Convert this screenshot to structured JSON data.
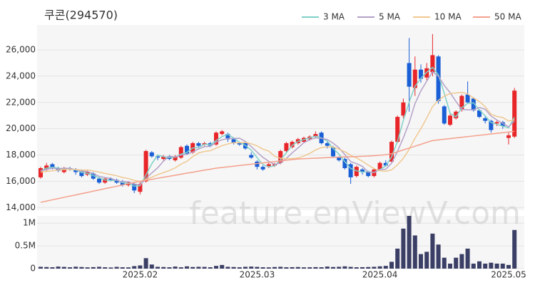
{
  "watermark": "feature.enViewV.com",
  "chart_data": [
    {
      "type": "candlestick",
      "title": "쿠콘(294570)",
      "up_color": "#e8262a",
      "down_color": "#1a5fd6",
      "open": [
        16300,
        16900,
        17300,
        17000,
        16700,
        17000,
        16900,
        16800,
        16500,
        16600,
        16200,
        15900,
        16200,
        16100,
        16000,
        15700,
        15800,
        15200,
        16000,
        18200,
        17900,
        17700,
        17900,
        17600,
        17800,
        18700,
        18200,
        18900,
        18800,
        18900,
        18800,
        19600,
        19600,
        19200,
        18900,
        18900,
        18000,
        17500,
        17100,
        17100,
        17200,
        17400,
        18300,
        18600,
        18900,
        19000,
        19200,
        19400,
        19700,
        18900,
        18600,
        17800,
        17700,
        17300,
        16400,
        16900,
        16700,
        16400,
        16900,
        17400,
        17500,
        19000,
        21000,
        25000,
        23100,
        24500,
        23900,
        24300,
        25500,
        21700,
        20300,
        20800,
        21500,
        22600,
        22300,
        21400,
        20800,
        20600,
        20400,
        20500,
        19300,
        19400
      ],
      "high": [
        17100,
        17400,
        17400,
        17100,
        17100,
        17100,
        17000,
        16900,
        16800,
        16700,
        16300,
        16300,
        16300,
        16200,
        16100,
        16000,
        15900,
        16000,
        18400,
        18300,
        18000,
        18000,
        18000,
        18000,
        18700,
        18800,
        19000,
        19000,
        19000,
        19000,
        19800,
        19900,
        19700,
        19300,
        19000,
        19000,
        18200,
        17600,
        17200,
        17400,
        17400,
        18400,
        19000,
        19100,
        19300,
        19400,
        19500,
        19800,
        19800,
        19000,
        18700,
        17900,
        17800,
        17400,
        17200,
        17000,
        16800,
        17000,
        17500,
        17600,
        19100,
        21000,
        22300,
        26900,
        25500,
        24900,
        25000,
        27200,
        25600,
        21800,
        21200,
        21400,
        22600,
        23600,
        22400,
        21500,
        21000,
        20700,
        20600,
        20600,
        19700,
        23100
      ],
      "low": [
        16200,
        16800,
        16900,
        16700,
        16600,
        16800,
        16500,
        16300,
        16400,
        16100,
        15800,
        15800,
        16000,
        15800,
        15600,
        15600,
        15100,
        15000,
        15900,
        17800,
        17600,
        17600,
        17600,
        17500,
        17700,
        18000,
        18100,
        18600,
        18700,
        18600,
        18700,
        19500,
        19000,
        18800,
        18700,
        18400,
        17700,
        16900,
        16800,
        17000,
        17100,
        17300,
        18200,
        18500,
        18800,
        18900,
        19100,
        19300,
        18800,
        18500,
        17800,
        17500,
        16900,
        15800,
        16300,
        16500,
        16300,
        16300,
        16800,
        17100,
        17400,
        18900,
        20800,
        21300,
        22500,
        23500,
        23700,
        24000,
        21900,
        20300,
        20200,
        20700,
        21300,
        21900,
        21300,
        20800,
        20400,
        19700,
        20200,
        20000,
        18800,
        19300
      ],
      "close": [
        17000,
        17200,
        17000,
        16800,
        17000,
        16900,
        16700,
        16400,
        16700,
        16200,
        15900,
        16200,
        16100,
        15900,
        15700,
        15900,
        15300,
        15800,
        18300,
        17900,
        17800,
        17900,
        17700,
        17900,
        18600,
        18100,
        18900,
        18700,
        18900,
        18700,
        19700,
        19800,
        19200,
        18900,
        18800,
        18500,
        17800,
        17100,
        16900,
        17300,
        17300,
        18300,
        18900,
        19000,
        19200,
        19300,
        19400,
        19600,
        18900,
        18700,
        17900,
        17600,
        17000,
        16300,
        17100,
        16700,
        16400,
        16900,
        17400,
        17200,
        19000,
        20900,
        22000,
        23200,
        24500,
        23800,
        24600,
        25600,
        22100,
        20400,
        21000,
        21300,
        22500,
        22000,
        21400,
        20900,
        20600,
        19900,
        20500,
        20200,
        19500,
        22900
      ],
      "series": [
        {
          "name": "3 MA",
          "color": "#7fd1c8",
          "values": [
            16800,
            17000,
            17070,
            17000,
            16930,
            16900,
            16870,
            16670,
            16600,
            16430,
            16270,
            16100,
            16070,
            16070,
            15900,
            15830,
            15630,
            15670,
            16470,
            17330,
            18000,
            17870,
            17800,
            17830,
            18070,
            18200,
            18530,
            18570,
            18830,
            18770,
            19100,
            19400,
            19570,
            19300,
            18970,
            18730,
            18370,
            17800,
            17270,
            17100,
            17170,
            17630,
            18170,
            18730,
            19030,
            19170,
            19300,
            19430,
            19300,
            19070,
            18500,
            18070,
            17500,
            16970,
            16800,
            16700,
            16730,
            16670,
            16900,
            17170,
            17870,
            19030,
            20630,
            22030,
            23230,
            23830,
            24300,
            24670,
            24100,
            22700,
            21170,
            20900,
            21600,
            21930,
            21970,
            21430,
            20970,
            20470,
            20330,
            20200,
            20070,
            20870
          ]
        },
        {
          "name": "5 MA",
          "color": "#b4a0c8",
          "values": [
            16800,
            16900,
            17000,
            16950,
            17000,
            16980,
            16880,
            16760,
            16740,
            16580,
            16380,
            16280,
            16220,
            16060,
            15960,
            15960,
            15780,
            15720,
            16200,
            16640,
            17020,
            17540,
            17920,
            17840,
            18000,
            18040,
            18240,
            18460,
            18640,
            18660,
            18980,
            19160,
            19260,
            19260,
            19280,
            19040,
            18640,
            18220,
            17820,
            17520,
            17280,
            17380,
            17740,
            18160,
            18540,
            18940,
            19160,
            19300,
            19280,
            19180,
            18900,
            18540,
            18040,
            17500,
            17340,
            17140,
            16700,
            16680,
            16900,
            16920,
            17380,
            18280,
            19300,
            20460,
            21920,
            22880,
            23620,
            24340,
            24000,
            23300,
            22740,
            22080,
            21460,
            21440,
            21440,
            21620,
            21480,
            20960,
            20660,
            20420,
            20140,
            20600
          ]
        },
        {
          "name": "10 MA",
          "color": "#f0c890",
          "values": [
            16700,
            16750,
            16800,
            16850,
            16900,
            16900,
            16900,
            16850,
            16860,
            16790,
            16700,
            16600,
            16510,
            16420,
            16290,
            16210,
            16070,
            15980,
            16140,
            16310,
            16500,
            16660,
            16820,
            17020,
            17310,
            17520,
            17880,
            18160,
            18270,
            18330,
            18520,
            18710,
            18840,
            18940,
            18930,
            18970,
            18860,
            18700,
            18440,
            18300,
            17900,
            17750,
            17720,
            17730,
            17770,
            17920,
            18130,
            18380,
            18570,
            18610,
            18610,
            18440,
            18250,
            17980,
            17780,
            17530,
            17230,
            16960,
            16800,
            16760,
            16870,
            17250,
            17750,
            18440,
            19280,
            20000,
            20820,
            21690,
            22160,
            22480,
            22680,
            22720,
            22770,
            22650,
            22340,
            22070,
            21670,
            21100,
            20940,
            20850,
            20590,
            20680
          ]
        },
        {
          "name": "50 MA",
          "color": "#f4a08c",
          "values": [
            14400,
            14490,
            14590,
            14680,
            14780,
            14870,
            14960,
            15060,
            15150,
            15250,
            15340,
            15440,
            15530,
            15620,
            15720,
            15810,
            15910,
            16000,
            16080,
            16150,
            16230,
            16310,
            16380,
            16460,
            16540,
            16620,
            16690,
            16770,
            16850,
            16920,
            17000,
            17050,
            17100,
            17150,
            17200,
            17250,
            17300,
            17350,
            17400,
            17450,
            17500,
            17550,
            17600,
            17650,
            17700,
            17720,
            17740,
            17760,
            17780,
            17800,
            17820,
            17840,
            17860,
            17870,
            17880,
            17900,
            17920,
            17950,
            17980,
            18020,
            18100,
            18240,
            18390,
            18530,
            18670,
            18810,
            18960,
            19100,
            19150,
            19200,
            19250,
            19300,
            19350,
            19400,
            19450,
            19500,
            19550,
            19600,
            19650,
            19700,
            19750,
            19800
          ]
        }
      ],
      "ylim": [
        13800,
        27900
      ],
      "yticks": [
        {
          "value": 14000,
          "label": "14,000"
        },
        {
          "value": 16000,
          "label": "16,000"
        },
        {
          "value": 18000,
          "label": "18,000"
        },
        {
          "value": 20000,
          "label": "20,000"
        },
        {
          "value": 22000,
          "label": "22,000"
        },
        {
          "value": 24000,
          "label": "24,000"
        },
        {
          "value": 26000,
          "label": "26,000"
        }
      ],
      "grid": true
    },
    {
      "type": "bar",
      "color": "#3b3f66",
      "categories": [
        null,
        null,
        null,
        null,
        null,
        null,
        null,
        null,
        null,
        null,
        null,
        null,
        null,
        null,
        null,
        null,
        null,
        "2025.02",
        null,
        null,
        null,
        null,
        null,
        null,
        null,
        null,
        null,
        null,
        null,
        null,
        null,
        null,
        null,
        null,
        null,
        null,
        null,
        "2025.03",
        null,
        null,
        null,
        null,
        null,
        null,
        null,
        null,
        null,
        null,
        null,
        null,
        null,
        null,
        null,
        null,
        null,
        null,
        null,
        null,
        "2025.04",
        null,
        null,
        null,
        null,
        null,
        null,
        null,
        null,
        null,
        null,
        null,
        null,
        null,
        null,
        null,
        null,
        null,
        null,
        null,
        null,
        null,
        "2025.05",
        null
      ],
      "values": [
        40000,
        35000,
        30000,
        45000,
        38000,
        30000,
        42000,
        35000,
        28000,
        33000,
        40000,
        30000,
        25000,
        38000,
        30000,
        28000,
        55000,
        70000,
        230000,
        90000,
        40000,
        35000,
        30000,
        45000,
        30000,
        50000,
        35000,
        40000,
        38000,
        30000,
        60000,
        80000,
        40000,
        35000,
        30000,
        40000,
        45000,
        38000,
        30000,
        28000,
        35000,
        40000,
        30000,
        32000,
        35000,
        28000,
        30000,
        33000,
        30000,
        45000,
        35000,
        40000,
        50000,
        38000,
        30000,
        32000,
        35000,
        40000,
        50000,
        60000,
        150000,
        440000,
        880000,
        1160000,
        730000,
        320000,
        370000,
        770000,
        530000,
        240000,
        110000,
        240000,
        320000,
        440000,
        110000,
        160000,
        110000,
        130000,
        110000,
        110000,
        80000,
        850000
      ],
      "ylim": [
        0,
        1160000
      ],
      "yticks": [
        0,
        {
          "value": 500000,
          "label": "0.5M"
        },
        {
          "value": 1000000,
          "label": "1M"
        }
      ],
      "grid": true
    }
  ]
}
